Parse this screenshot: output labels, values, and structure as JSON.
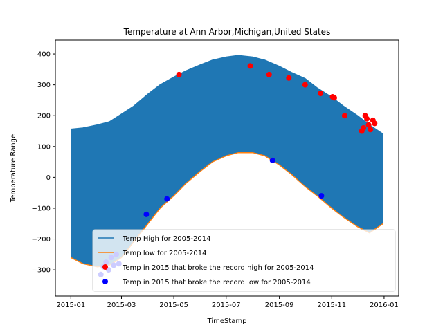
{
  "chart_data": {
    "type": "line",
    "title": "Temperature at Ann Arbor,Michigan,United States",
    "xlabel": "TimeStamp",
    "ylabel": "Temperature Range",
    "xlim": [
      "2014-12-14",
      "2016-01-18"
    ],
    "ylim": [
      -385,
      445
    ],
    "x_ticks": [
      "2015-01",
      "2015-03",
      "2015-05",
      "2015-07",
      "2015-09",
      "2015-11",
      "2016-01"
    ],
    "y_ticks": [
      -300,
      -200,
      -100,
      0,
      100,
      200,
      300,
      400
    ],
    "grid": false,
    "legend_position": "lower-right",
    "series": [
      {
        "name": "Temp High for 2005-2014",
        "color": "#1f77b4",
        "x": [
          "2015-01-01",
          "2015-01-15",
          "2015-02-01",
          "2015-02-15",
          "2015-03-01",
          "2015-03-15",
          "2015-04-01",
          "2015-04-15",
          "2015-05-01",
          "2015-05-15",
          "2015-06-01",
          "2015-06-15",
          "2015-07-01",
          "2015-07-15",
          "2015-08-01",
          "2015-08-15",
          "2015-09-01",
          "2015-09-15",
          "2015-10-01",
          "2015-10-15",
          "2015-11-01",
          "2015-11-15",
          "2015-12-01",
          "2015-12-15",
          "2015-12-31"
        ],
        "values": [
          156,
          160,
          170,
          180,
          205,
          230,
          270,
          300,
          325,
          345,
          365,
          380,
          390,
          395,
          390,
          380,
          360,
          340,
          320,
          290,
          260,
          230,
          200,
          170,
          140
        ]
      },
      {
        "name": "Temp low for 2005-2014",
        "color": "#ff7f0e",
        "x": [
          "2015-01-01",
          "2015-01-15",
          "2015-02-01",
          "2015-02-15",
          "2015-03-01",
          "2015-03-15",
          "2015-04-01",
          "2015-04-15",
          "2015-05-01",
          "2015-05-15",
          "2015-06-01",
          "2015-06-15",
          "2015-07-01",
          "2015-07-15",
          "2015-08-01",
          "2015-08-15",
          "2015-09-01",
          "2015-09-15",
          "2015-10-01",
          "2015-10-15",
          "2015-11-01",
          "2015-11-15",
          "2015-12-01",
          "2015-12-15",
          "2015-12-31"
        ],
        "values": [
          -260,
          -280,
          -290,
          -285,
          -260,
          -210,
          -150,
          -100,
          -60,
          -20,
          20,
          50,
          70,
          80,
          80,
          70,
          40,
          10,
          -30,
          -60,
          -100,
          -130,
          -160,
          -180,
          -150
        ]
      }
    ],
    "scatter": [
      {
        "name": "Temp in 2015 that broke the record high for 2005-2014",
        "color": "#ff0000",
        "x": [
          "2015-05-07",
          "2015-07-29",
          "2015-08-20",
          "2015-09-12",
          "2015-10-01",
          "2015-10-19",
          "2015-11-02",
          "2015-11-04",
          "2015-11-16",
          "2015-12-06",
          "2015-12-08",
          "2015-12-10",
          "2015-12-12",
          "2015-12-14",
          "2015-12-16",
          "2015-12-19",
          "2015-12-21"
        ],
        "values": [
          333,
          361,
          333,
          322,
          300,
          272,
          261,
          258,
          200,
          150,
          160,
          200,
          190,
          170,
          155,
          185,
          175
        ]
      },
      {
        "name": "Temp in 2015 that broke the record low for 2005-2014",
        "color": "#0000ff",
        "x": [
          "2015-02-05",
          "2015-02-08",
          "2015-02-11",
          "2015-02-14",
          "2015-02-17",
          "2015-02-20",
          "2015-02-23",
          "2015-02-26",
          "2015-03-30",
          "2015-04-23",
          "2015-08-24",
          "2015-10-20"
        ],
        "values": [
          -315,
          -290,
          -275,
          -300,
          -260,
          -285,
          -250,
          -280,
          -120,
          -70,
          55,
          -60
        ]
      }
    ]
  }
}
